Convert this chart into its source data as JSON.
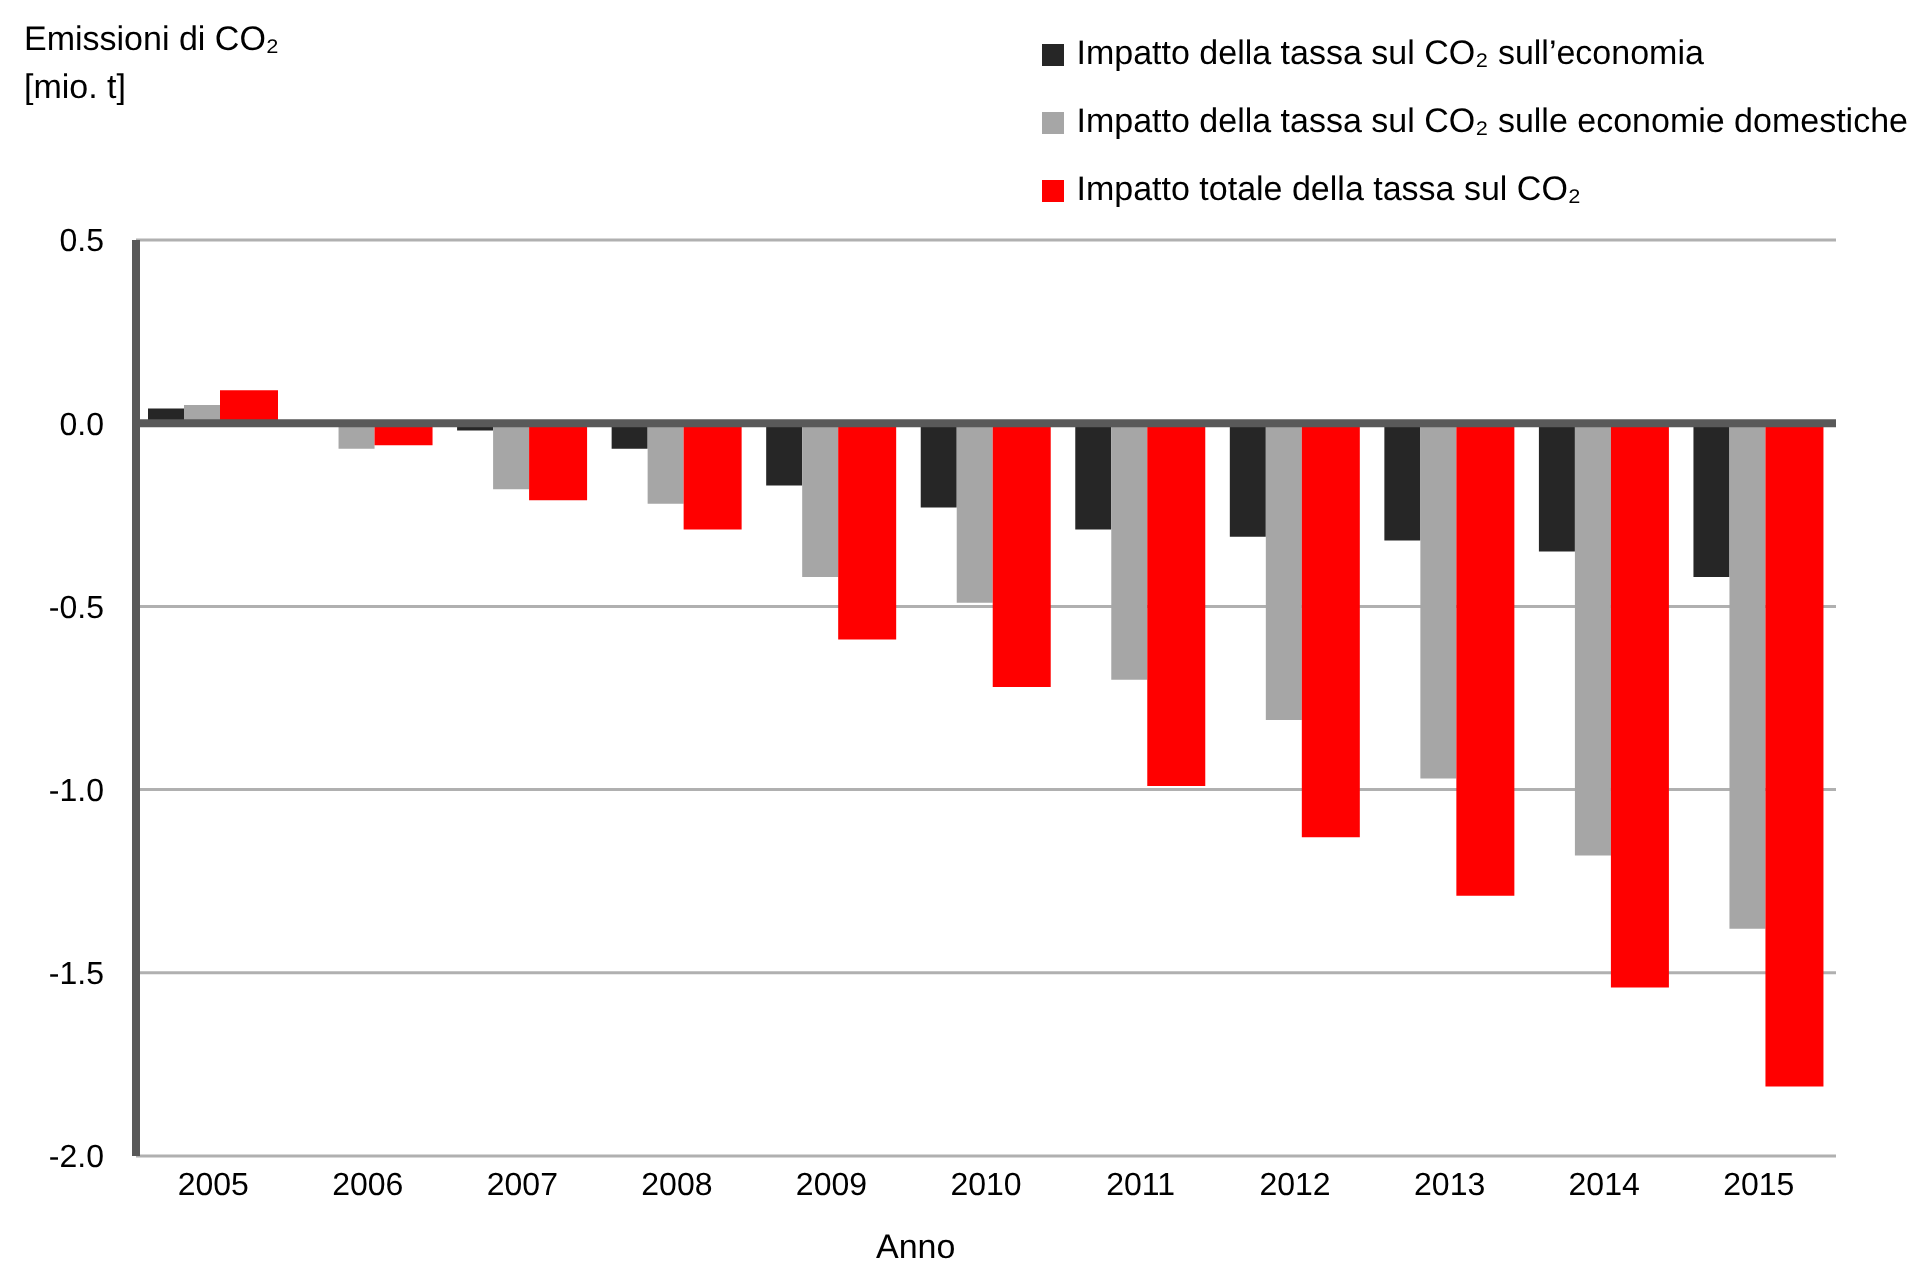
{
  "chart_data": {
    "type": "bar",
    "ylabel": "Emissioni di CO₂ [mio. t]",
    "xlabel": "Anno",
    "categories": [
      "2005",
      "2006",
      "2007",
      "2008",
      "2009",
      "2010",
      "2011",
      "2012",
      "2013",
      "2014",
      "2015"
    ],
    "series": [
      {
        "name": "Impatto della tassa sul CO₂ sull’economia",
        "color": "#262626",
        "values": [
          0.04,
          0.0,
          -0.02,
          -0.07,
          -0.17,
          -0.23,
          -0.29,
          -0.31,
          -0.32,
          -0.35,
          -0.42
        ]
      },
      {
        "name": "Impatto della tassa sul CO₂ sulle economie domestiche",
        "color": "#a6a6a6",
        "values": [
          0.05,
          -0.07,
          -0.18,
          -0.22,
          -0.42,
          -0.49,
          -0.7,
          -0.81,
          -0.97,
          -1.18,
          -1.38
        ]
      },
      {
        "name": "Impatto totale della tassa sul CO₂",
        "color": "#ff0000",
        "values": [
          0.09,
          -0.06,
          -0.21,
          -0.29,
          -0.59,
          -0.72,
          -0.99,
          -1.13,
          -1.29,
          -1.54,
          -1.81
        ]
      }
    ],
    "ylim": [
      -2,
      0.5
    ],
    "yticks": [
      0.5,
      {
        "value": 0,
        "label": "0.0"
      },
      -0.5,
      {
        "value": -1,
        "label": "-1.0"
      },
      -1.5,
      {
        "value": -2,
        "label": "-2.0"
      }
    ],
    "grid": "y",
    "legend": "top right"
  }
}
